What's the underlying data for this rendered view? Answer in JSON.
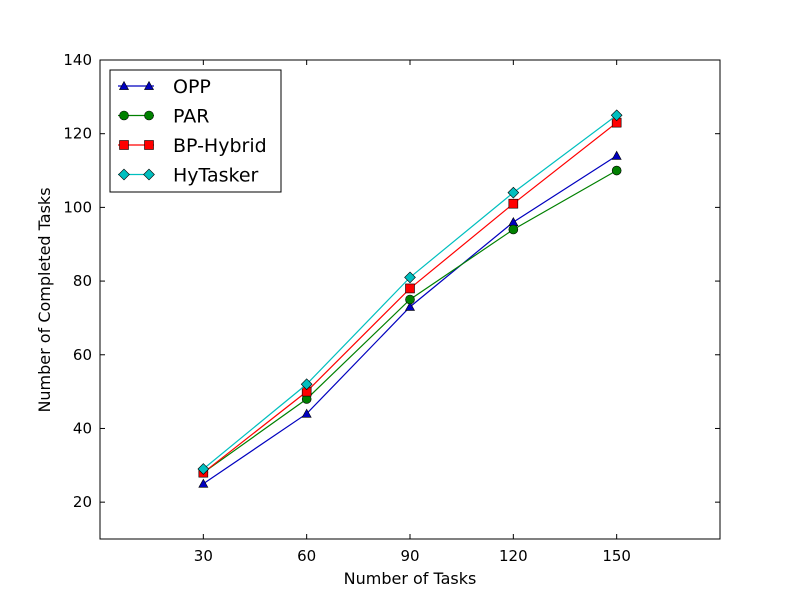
{
  "chart_data": {
    "type": "line",
    "title": "",
    "xlabel": "Number of Tasks",
    "ylabel": "Number of Completed Tasks",
    "x": [
      30,
      60,
      90,
      120,
      150
    ],
    "xlim": [
      0,
      180
    ],
    "ylim": [
      10,
      140
    ],
    "xticks": [
      "30",
      "60",
      "90",
      "120",
      "150"
    ],
    "yticks": [
      "20",
      "40",
      "60",
      "80",
      "100",
      "120",
      "140"
    ],
    "grid": false,
    "legend_position": "top-left",
    "series": [
      {
        "name": "OPP",
        "values": [
          25,
          44,
          73,
          96,
          114
        ],
        "color": "#0000bf",
        "marker": "triangle"
      },
      {
        "name": "PAR",
        "values": [
          28,
          48,
          75,
          94,
          110
        ],
        "color": "#008000",
        "marker": "circle"
      },
      {
        "name": "BP-Hybrid",
        "values": [
          28,
          50,
          78,
          101,
          123
        ],
        "color": "#ff0000",
        "marker": "square"
      },
      {
        "name": "HyTasker",
        "values": [
          29,
          52,
          81,
          104,
          125
        ],
        "color": "#00bfbf",
        "marker": "diamond"
      }
    ]
  }
}
